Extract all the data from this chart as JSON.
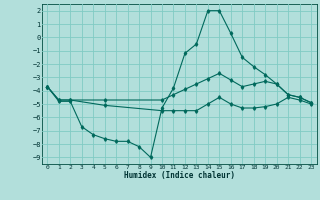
{
  "xlabel": "Humidex (Indice chaleur)",
  "background_color": "#b2dfdb",
  "grid_color": "#80cbc4",
  "line_color": "#00695c",
  "xlim": [
    -0.5,
    23.5
  ],
  "ylim": [
    -9.5,
    2.5
  ],
  "yticks": [
    2,
    1,
    0,
    -1,
    -2,
    -3,
    -4,
    -5,
    -6,
    -7,
    -8,
    -9
  ],
  "xticks": [
    0,
    1,
    2,
    3,
    4,
    5,
    6,
    7,
    8,
    9,
    10,
    11,
    12,
    13,
    14,
    15,
    16,
    17,
    18,
    19,
    20,
    21,
    22,
    23
  ],
  "line1_x": [
    0,
    1,
    2,
    3,
    4,
    5,
    6,
    7,
    8,
    9,
    10,
    11,
    12,
    13,
    14,
    15,
    16,
    17,
    18,
    19,
    20,
    21,
    22,
    23
  ],
  "line1_y": [
    -3.7,
    -4.8,
    -4.8,
    -6.7,
    -7.3,
    -7.6,
    -7.8,
    -7.8,
    -8.2,
    -9.0,
    -5.3,
    -3.8,
    -1.2,
    -0.5,
    2.0,
    2.0,
    0.3,
    -1.5,
    -2.2,
    -2.8,
    -3.5,
    -4.3,
    -4.5,
    -4.9
  ],
  "line2_x": [
    0,
    1,
    2,
    5,
    10,
    11,
    12,
    13,
    14,
    15,
    16,
    17,
    18,
    19,
    20,
    21,
    22,
    23
  ],
  "line2_y": [
    -3.7,
    -4.7,
    -4.7,
    -4.7,
    -4.7,
    -4.3,
    -3.9,
    -3.5,
    -3.1,
    -2.7,
    -3.2,
    -3.7,
    -3.5,
    -3.3,
    -3.5,
    -4.3,
    -4.5,
    -4.9
  ],
  "line3_x": [
    0,
    1,
    2,
    5,
    10,
    11,
    12,
    13,
    14,
    15,
    16,
    17,
    18,
    19,
    20,
    21,
    22,
    23
  ],
  "line3_y": [
    -3.7,
    -4.7,
    -4.7,
    -5.1,
    -5.5,
    -5.5,
    -5.5,
    -5.5,
    -5.0,
    -4.5,
    -5.0,
    -5.3,
    -5.3,
    -5.2,
    -5.0,
    -4.5,
    -4.7,
    -5.0
  ]
}
